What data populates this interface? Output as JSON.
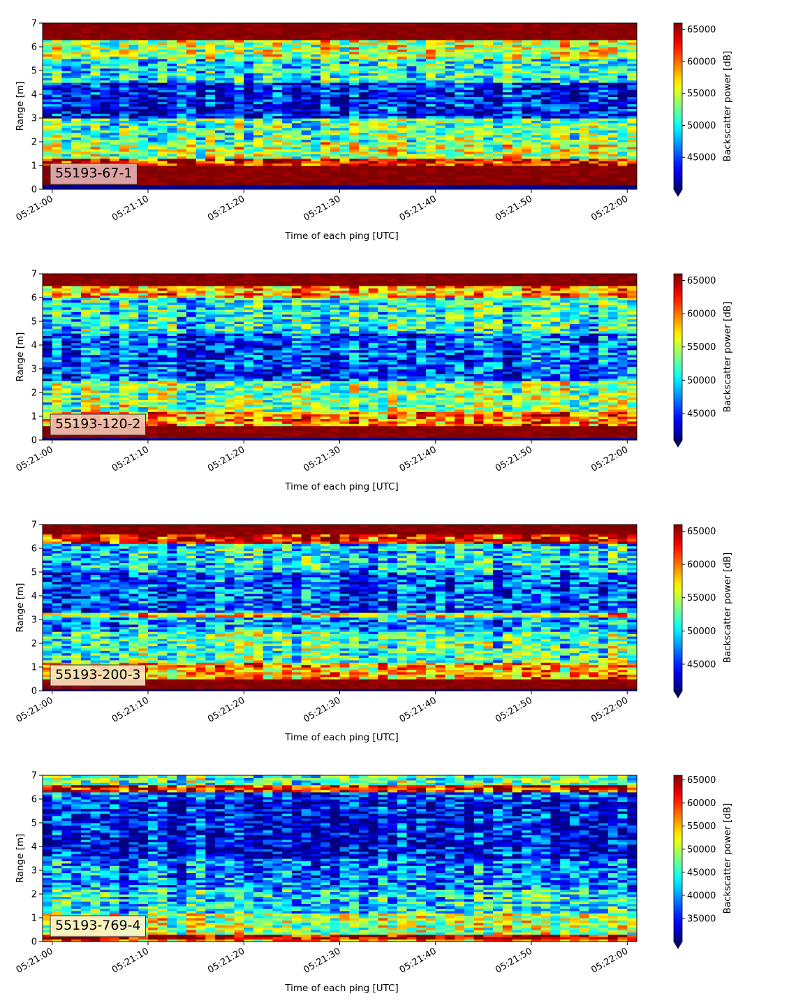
{
  "chart_data": [
    {
      "type": "heatmap",
      "label": "55193-67-1",
      "xlabel": "Time of each ping [UTC]",
      "ylabel": "Range [m]",
      "x_ticks": [
        "05:21:00",
        "05:21:10",
        "05:21:20",
        "05:21:30",
        "05:21:40",
        "05:21:50",
        "05:22:00"
      ],
      "x_range_seconds": [
        -1,
        61
      ],
      "ylim": [
        0,
        7
      ],
      "y_ticks": [
        0,
        1,
        2,
        3,
        4,
        5,
        6,
        7
      ],
      "colorbar_label": "Backscatter power [dB]",
      "colorbar_range": [
        40000,
        66000
      ],
      "colorbar_ticks": [
        45000,
        50000,
        55000,
        60000,
        65000
      ],
      "colormap": "jet",
      "colorbar_extend": "min",
      "legend_position": "lower-left",
      "tag_fill": "#e3b4b4",
      "bands": [
        {
          "range_m": [
            0,
            0.2
          ],
          "level": 0.02
        },
        {
          "range_m": [
            0.2,
            1.0
          ],
          "level": 1.0
        },
        {
          "range_m": [
            1.0,
            1.3
          ],
          "level": 0.85
        },
        {
          "range_m": [
            1.3,
            2.0
          ],
          "level": 0.55
        },
        {
          "range_m": [
            2.0,
            3.0
          ],
          "level": 0.45
        },
        {
          "range_m": [
            3.0,
            4.5
          ],
          "level": 0.12
        },
        {
          "range_m": [
            4.5,
            5.5
          ],
          "level": 0.38
        },
        {
          "range_m": [
            5.5,
            6.3
          ],
          "level": 0.55
        },
        {
          "range_m": [
            6.3,
            7.0
          ],
          "level": 1.0
        }
      ]
    },
    {
      "type": "heatmap",
      "label": "55193-120-2",
      "xlabel": "Time of each ping [UTC]",
      "ylabel": "Range [m]",
      "x_ticks": [
        "05:21:00",
        "05:21:10",
        "05:21:20",
        "05:21:30",
        "05:21:40",
        "05:21:50",
        "05:22:00"
      ],
      "x_range_seconds": [
        -1,
        61
      ],
      "ylim": [
        0,
        7
      ],
      "y_ticks": [
        0,
        1,
        2,
        3,
        4,
        5,
        6,
        7
      ],
      "colorbar_label": "Backscatter power [dB]",
      "colorbar_range": [
        41000,
        66000
      ],
      "colorbar_ticks": [
        45000,
        50000,
        55000,
        60000,
        65000
      ],
      "colormap": "jet",
      "colorbar_extend": "min",
      "legend_position": "lower-left",
      "tag_fill": "#f2c7b2",
      "bands": [
        {
          "range_m": [
            0,
            0.15
          ],
          "level": 0.02
        },
        {
          "range_m": [
            0.15,
            0.6
          ],
          "level": 1.0
        },
        {
          "range_m": [
            0.6,
            1.2
          ],
          "level": 0.75
        },
        {
          "range_m": [
            1.2,
            2.5
          ],
          "level": 0.5
        },
        {
          "range_m": [
            2.5,
            4.5
          ],
          "level": 0.2
        },
        {
          "range_m": [
            4.5,
            6.0
          ],
          "level": 0.4
        },
        {
          "range_m": [
            6.0,
            6.5
          ],
          "level": 0.7
        },
        {
          "range_m": [
            6.5,
            7.0
          ],
          "level": 1.0
        }
      ]
    },
    {
      "type": "heatmap",
      "label": "55193-200-3",
      "xlabel": "Time of each ping [UTC]",
      "ylabel": "Range [m]",
      "x_ticks": [
        "05:21:00",
        "05:21:10",
        "05:21:20",
        "05:21:30",
        "05:21:40",
        "05:21:50",
        "05:22:00"
      ],
      "x_range_seconds": [
        -1,
        61
      ],
      "ylim": [
        0,
        7
      ],
      "y_ticks": [
        0,
        1,
        2,
        3,
        4,
        5,
        6,
        7
      ],
      "colorbar_label": "Backscatter power [dB]",
      "colorbar_range": [
        41000,
        66000
      ],
      "colorbar_ticks": [
        45000,
        50000,
        55000,
        60000,
        65000
      ],
      "colormap": "jet",
      "colorbar_extend": "min",
      "legend_position": "lower-left",
      "tag_fill": "#fbe3c0",
      "bands": [
        {
          "range_m": [
            0,
            0.15
          ],
          "level": 0.02
        },
        {
          "range_m": [
            0.15,
            0.55
          ],
          "level": 1.0
        },
        {
          "range_m": [
            0.55,
            1.2
          ],
          "level": 0.7
        },
        {
          "range_m": [
            1.2,
            2.5
          ],
          "level": 0.45
        },
        {
          "range_m": [
            2.5,
            3.1
          ],
          "level": 0.28
        },
        {
          "range_m": [
            3.1,
            3.35
          ],
          "level": 0.62
        },
        {
          "range_m": [
            3.35,
            5.0
          ],
          "level": 0.2
        },
        {
          "range_m": [
            5.0,
            6.2
          ],
          "level": 0.35
        },
        {
          "range_m": [
            6.2,
            6.6
          ],
          "level": 0.85
        },
        {
          "range_m": [
            6.6,
            7.0
          ],
          "level": 1.0
        }
      ]
    },
    {
      "type": "heatmap",
      "label": "55193-769-4",
      "xlabel": "Time of each ping [UTC]",
      "ylabel": "Range [m]",
      "x_ticks": [
        "05:21:00",
        "05:21:10",
        "05:21:20",
        "05:21:30",
        "05:21:40",
        "05:21:50",
        "05:22:00"
      ],
      "x_range_seconds": [
        -1,
        61
      ],
      "ylim": [
        0,
        7
      ],
      "y_ticks": [
        0,
        1,
        2,
        3,
        4,
        5,
        6,
        7
      ],
      "colorbar_label": "Backscatter power [dB]",
      "colorbar_range": [
        30000,
        66000
      ],
      "colorbar_ticks": [
        35000,
        40000,
        45000,
        50000,
        55000,
        60000,
        65000
      ],
      "colormap": "jet",
      "colorbar_extend": "min",
      "legend_position": "lower-left",
      "tag_fill": "#fff4cc",
      "bands": [
        {
          "range_m": [
            0,
            0.15
          ],
          "level": 0.75
        },
        {
          "range_m": [
            0.15,
            0.3
          ],
          "level": 0.95
        },
        {
          "range_m": [
            0.3,
            1.2
          ],
          "level": 0.55
        },
        {
          "range_m": [
            1.2,
            2.2
          ],
          "level": 0.38
        },
        {
          "range_m": [
            2.2,
            3.5
          ],
          "level": 0.25
        },
        {
          "range_m": [
            3.5,
            6.0
          ],
          "level": 0.12
        },
        {
          "range_m": [
            6.0,
            6.3
          ],
          "level": 0.2
        },
        {
          "range_m": [
            6.3,
            6.6
          ],
          "level": 0.85
        },
        {
          "range_m": [
            6.6,
            7.0
          ],
          "level": 0.45
        }
      ]
    }
  ]
}
